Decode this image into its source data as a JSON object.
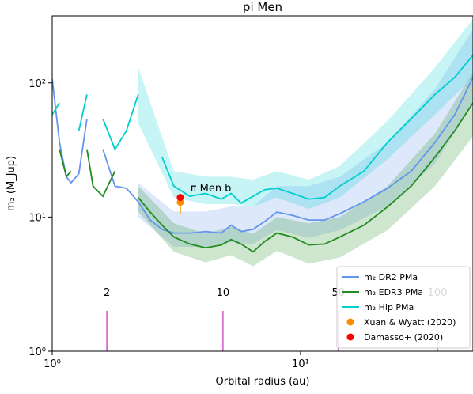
{
  "chart_data": {
    "type": "line",
    "title": "pi Men",
    "x_label": "Orbital radius (au)",
    "y_label": "m₂ (M_Jup)",
    "xscale": "log",
    "yscale": "log",
    "xlim": [
      1,
      49.5
    ],
    "ylim": [
      1,
      316
    ],
    "xticks": [
      {
        "value": 1,
        "label": "10⁰"
      },
      {
        "value": 10,
        "label": "10¹"
      }
    ],
    "yticks": [
      {
        "value": 1,
        "label": "10⁰"
      },
      {
        "value": 10,
        "label": "10¹"
      },
      {
        "value": 100,
        "label": "10²"
      }
    ],
    "x": [
      1.0,
      1.07,
      1.14,
      1.19,
      1.28,
      1.38,
      1.46,
      1.6,
      1.79,
      1.99,
      2.22,
      2.48,
      2.77,
      3.09,
      3.58,
      4.15,
      4.8,
      5.25,
      5.77,
      6.44,
      7.19,
      8.03,
      9.29,
      10.8,
      12.5,
      14.4,
      18.0,
      22.4,
      27.9,
      34.8,
      41.8,
      49.5
    ],
    "band_x": [
      2.22,
      3.09,
      4.15,
      5.25,
      6.44,
      8.03,
      10.8,
      14.4,
      22.4,
      34.8,
      49.5
    ],
    "series": [
      {
        "name": "m₂ DR2 PMa",
        "color": "#6495ed",
        "values": [
          107,
          36,
          20,
          18,
          21,
          54,
          null,
          32,
          17,
          16.4,
          13,
          9.5,
          8.1,
          7.6,
          7.6,
          7.8,
          7.6,
          8.7,
          7.8,
          8.1,
          9.3,
          10.9,
          10.3,
          9.5,
          9.5,
          10.6,
          13,
          16.4,
          22,
          36,
          58,
          110
        ],
        "band_lower": [
          10,
          6,
          6,
          6.5,
          6.3,
          8,
          7,
          8,
          12,
          25,
          70
        ],
        "band_upper": [
          18,
          11,
          11,
          12,
          12,
          17,
          17,
          20,
          36,
          90,
          250
        ]
      },
      {
        "name": "m₂ EDR3 PMa",
        "color": "#228b22",
        "values": [
          null,
          32,
          20,
          22,
          null,
          32,
          17,
          14.3,
          22,
          null,
          14,
          10.9,
          8.7,
          7.1,
          6.3,
          5.9,
          6.2,
          6.8,
          6.3,
          5.5,
          6.6,
          7.6,
          7.1,
          6.2,
          6.3,
          7.1,
          8.7,
          11.9,
          17,
          28,
          44,
          71
        ],
        "band_lower": [
          11,
          5.5,
          4.6,
          5.2,
          4.3,
          5.6,
          4.5,
          5,
          8,
          17,
          40
        ],
        "band_upper": [
          17,
          9,
          7.5,
          8.5,
          7.5,
          10,
          9,
          10,
          17,
          42,
          120
        ]
      },
      {
        "name": "m₂ Hip PMa",
        "color": "#00ced1",
        "values": [
          58,
          71,
          null,
          null,
          44,
          82,
          null,
          54,
          32,
          44,
          82,
          null,
          28,
          17,
          14.3,
          15,
          13.6,
          15,
          12.7,
          14.3,
          16,
          16.4,
          15,
          13.6,
          14,
          17,
          22,
          36,
          54,
          82,
          110,
          161
        ],
        "band_lower": [
          50,
          14,
          12.5,
          12.5,
          12,
          14,
          11.5,
          14,
          27,
          58,
          110
        ],
        "band_upper": [
          130,
          22,
          20,
          20,
          19,
          22,
          19,
          24,
          52,
          130,
          300
        ]
      }
    ],
    "points": [
      {
        "name": "Xuan & Wyatt (2020)",
        "color": "#ff8c00",
        "x": 3.28,
        "y": 12.9,
        "error_low": 10.6,
        "error_high": 13.6
      },
      {
        "name": "Damasso+ (2020)",
        "color": "#ff0000",
        "x": 3.28,
        "y": 14.0
      }
    ],
    "annotation": {
      "text": "π Men b",
      "x": 3.6,
      "y": 15.5,
      "color": "#ff0000"
    },
    "markers": {
      "color": "#da70d6",
      "top": 2.0,
      "label_y": 2.73,
      "items": [
        {
          "x": 1.66,
          "label": "2"
        },
        {
          "x": 4.87,
          "label": "10"
        },
        {
          "x": 14.2,
          "label": "50"
        },
        {
          "x": 35.6,
          "label": "100"
        }
      ]
    },
    "legend": "lower right"
  }
}
